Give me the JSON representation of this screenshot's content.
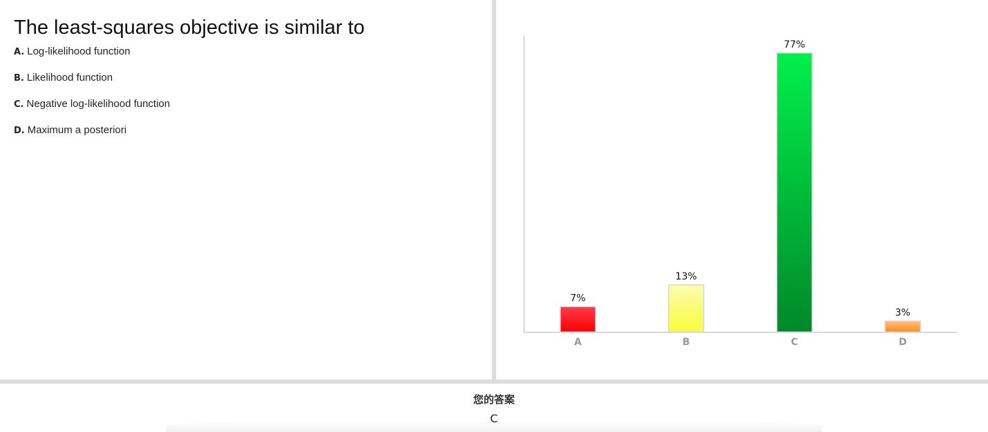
{
  "question": {
    "title": "The least-squares objective is similar to",
    "options": [
      {
        "letter": "A.",
        "text": "Log-likelihood function"
      },
      {
        "letter": "B.",
        "text": "Likelihood function"
      },
      {
        "letter": "C.",
        "text": "Negative log-likelihood function"
      },
      {
        "letter": "D.",
        "text": "Maximum a posteriori"
      }
    ]
  },
  "chart_data": {
    "type": "bar",
    "categories": [
      "A",
      "B",
      "C",
      "D"
    ],
    "values": [
      7,
      13,
      77,
      3
    ],
    "value_labels": [
      "7%",
      "13%",
      "77%",
      "3%"
    ],
    "ylim": [
      0,
      80
    ],
    "grid": false,
    "legend": "none",
    "colors": [
      {
        "top": "#ff3b4d",
        "bottom": "#ff0000"
      },
      {
        "top": "#fdfcb0",
        "bottom": "#f8fc3a"
      },
      {
        "top": "#00f04a",
        "bottom": "#00882a"
      },
      {
        "top": "#ffc08a",
        "bottom": "#ff8a10"
      }
    ]
  },
  "answer": {
    "label": "您的答案",
    "value": "C"
  }
}
